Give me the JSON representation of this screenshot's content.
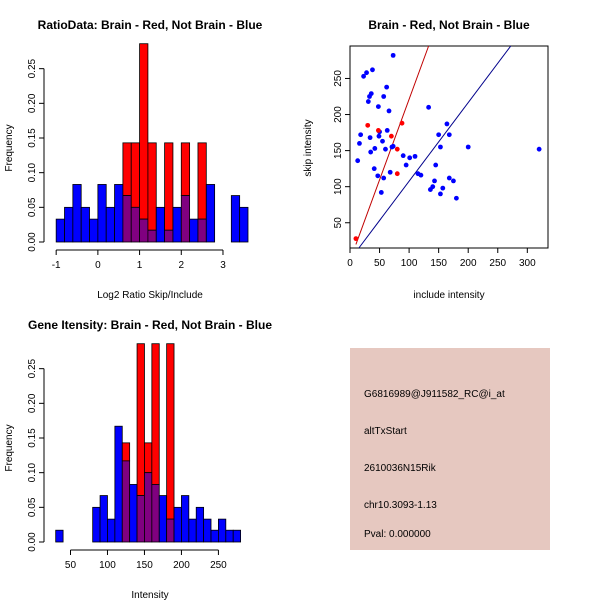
{
  "colors": {
    "red": "#ff0000",
    "blue": "#0000ff",
    "overlap": "#800080",
    "panel_bg": "#e6c8c0",
    "pval": "#a00000",
    "fit_red": "#c00000",
    "fit_blue": "#00008b"
  },
  "chart_data": [
    {
      "id": "ratio-hist",
      "type": "bar",
      "title": "RatioData: Brain - Red, Not Brain - Blue",
      "xlabel": "Log2 Ratio Skip/Include",
      "ylabel": "Frequency",
      "xlim": [
        -1.1,
        3.6
      ],
      "ylim": [
        0,
        0.3
      ],
      "xticks": [
        -1,
        0,
        1,
        2,
        3
      ],
      "xtick_labels": [
        "-1",
        "0",
        "1",
        "2",
        "3"
      ],
      "yticks": [
        0,
        0.05,
        0.1,
        0.15,
        0.2,
        0.25
      ],
      "ytick_labels": [
        "0.00",
        "0.05",
        "0.10",
        "0.15",
        "0.20",
        "0.25"
      ],
      "bin_width": 0.2,
      "series": [
        {
          "name": "Not Brain",
          "color": "blue",
          "bins_start": [
            -1.0,
            -0.8,
            -0.6,
            -0.4,
            -0.2,
            0.0,
            0.2,
            0.4,
            0.6,
            0.8,
            1.0,
            1.2,
            1.4,
            1.6,
            1.8,
            2.0,
            2.2,
            2.4,
            2.6,
            2.8,
            3.0,
            3.2,
            3.4
          ],
          "values": [
            0.033,
            0.05,
            0.083,
            0.05,
            0.033,
            0.083,
            0.05,
            0.083,
            0.067,
            0.05,
            0.033,
            0.017,
            0.05,
            0.017,
            0.05,
            0.067,
            0.033,
            0.033,
            0.083,
            0,
            0,
            0.067,
            0.05
          ]
        },
        {
          "name": "Brain",
          "color": "red",
          "bins_start": [
            0.6,
            0.8,
            1.0,
            1.2,
            1.4,
            1.6,
            1.8,
            2.0,
            2.2,
            2.4,
            2.6
          ],
          "values": [
            0.143,
            0.143,
            0.286,
            0.143,
            0,
            0.143,
            0,
            0.143,
            0,
            0.143,
            0
          ]
        }
      ]
    },
    {
      "id": "scatter",
      "type": "scatter",
      "title": "Brain - Red, Not Brain - Blue",
      "xlabel": "include intensity",
      "ylabel": "skip intensity",
      "xlim": [
        0,
        335
      ],
      "ylim": [
        15,
        295
      ],
      "xticks": [
        0,
        50,
        100,
        150,
        200,
        250,
        300
      ],
      "xtick_labels": [
        "0",
        "50",
        "100",
        "150",
        "200",
        "250",
        "300"
      ],
      "yticks": [
        50,
        100,
        150,
        200,
        250
      ],
      "ytick_labels": [
        "50",
        "100",
        "150",
        "200",
        "250"
      ],
      "fit_lines": [
        {
          "name": "Brain fit",
          "color": "fit_red",
          "x": [
            10,
            133
          ],
          "y": [
            20,
            295
          ]
        },
        {
          "name": "Not Brain fit",
          "color": "fit_blue",
          "x": [
            15,
            272
          ],
          "y": [
            15,
            295
          ]
        }
      ],
      "series": [
        {
          "name": "Not Brain",
          "color": "blue",
          "points": [
            [
              23,
              253
            ],
            [
              28,
              258
            ],
            [
              38,
              262
            ],
            [
              31,
              218
            ],
            [
              33,
              225
            ],
            [
              36,
              229
            ],
            [
              48,
              211
            ],
            [
              57,
              225
            ],
            [
              62,
              238
            ],
            [
              73,
              282
            ],
            [
              16,
              160
            ],
            [
              18,
              172
            ],
            [
              13,
              136
            ],
            [
              35,
              148
            ],
            [
              42,
              153
            ],
            [
              49,
              170
            ],
            [
              50,
              176
            ],
            [
              55,
              163
            ],
            [
              60,
              152
            ],
            [
              63,
              178
            ],
            [
              66,
              205
            ],
            [
              41,
              125
            ],
            [
              47,
              115
            ],
            [
              57,
              112
            ],
            [
              53,
              92
            ],
            [
              68,
              120
            ],
            [
              71,
              155
            ],
            [
              73,
              156
            ],
            [
              90,
              143
            ],
            [
              95,
              130
            ],
            [
              101,
              140
            ],
            [
              110,
              142
            ],
            [
              115,
              118
            ],
            [
              120,
              116
            ],
            [
              133,
              210
            ],
            [
              136,
              96
            ],
            [
              140,
              100
            ],
            [
              143,
              108
            ],
            [
              145,
              130
            ],
            [
              150,
              172
            ],
            [
              153,
              155
            ],
            [
              157,
              98
            ],
            [
              164,
              187
            ],
            [
              168,
              172
            ],
            [
              168,
              112
            ],
            [
              175,
              108
            ],
            [
              180,
              84
            ],
            [
              153,
              90
            ],
            [
              200,
              155
            ],
            [
              320,
              152
            ],
            [
              34,
              168
            ]
          ]
        },
        {
          "name": "Brain",
          "color": "red",
          "points": [
            [
              30,
              185
            ],
            [
              48,
              178
            ],
            [
              70,
              170
            ],
            [
              80,
              152
            ],
            [
              88,
              188
            ],
            [
              80,
              118
            ],
            [
              10,
              28
            ]
          ]
        }
      ]
    },
    {
      "id": "gene-hist",
      "type": "bar",
      "title": "Gene Itensity: Brain - Red, Not Brain - Blue",
      "xlabel": "Intensity",
      "ylabel": "Frequency",
      "xlim": [
        25,
        290
      ],
      "ylim": [
        0,
        0.3
      ],
      "xticks": [
        50,
        100,
        150,
        200,
        250
      ],
      "xtick_labels": [
        "50",
        "100",
        "150",
        "200",
        "250"
      ],
      "yticks": [
        0,
        0.05,
        0.1,
        0.15,
        0.2,
        0.25
      ],
      "ytick_labels": [
        "0.00",
        "0.05",
        "0.10",
        "0.15",
        "0.20",
        "0.25"
      ],
      "bin_width": 10,
      "series": [
        {
          "name": "Not Brain",
          "color": "blue",
          "bins_start": [
            30,
            40,
            50,
            60,
            70,
            80,
            90,
            100,
            110,
            120,
            130,
            140,
            150,
            160,
            170,
            180,
            190,
            200,
            210,
            220,
            230,
            240,
            250,
            260,
            270
          ],
          "values": [
            0.017,
            0,
            0,
            0,
            0,
            0.05,
            0.067,
            0.033,
            0.167,
            0.117,
            0.083,
            0.067,
            0.1,
            0.083,
            0.067,
            0.033,
            0.05,
            0.067,
            0.033,
            0.05,
            0.033,
            0.017,
            0.033,
            0.017,
            0.017
          ]
        },
        {
          "name": "Brain",
          "color": "red",
          "bins_start": [
            120,
            130,
            140,
            150,
            160,
            170,
            180
          ],
          "values": [
            0.143,
            0,
            0.286,
            0.143,
            0.286,
            0,
            0.286
          ]
        }
      ]
    }
  ],
  "info_panel": {
    "probe_id": "G6816989@J911582_RC@i_at",
    "event_type": "altTxStart",
    "gene": "2610036N15Rik",
    "location": "chr10.3093-1.13",
    "pval": "Pval: 0.000000"
  }
}
